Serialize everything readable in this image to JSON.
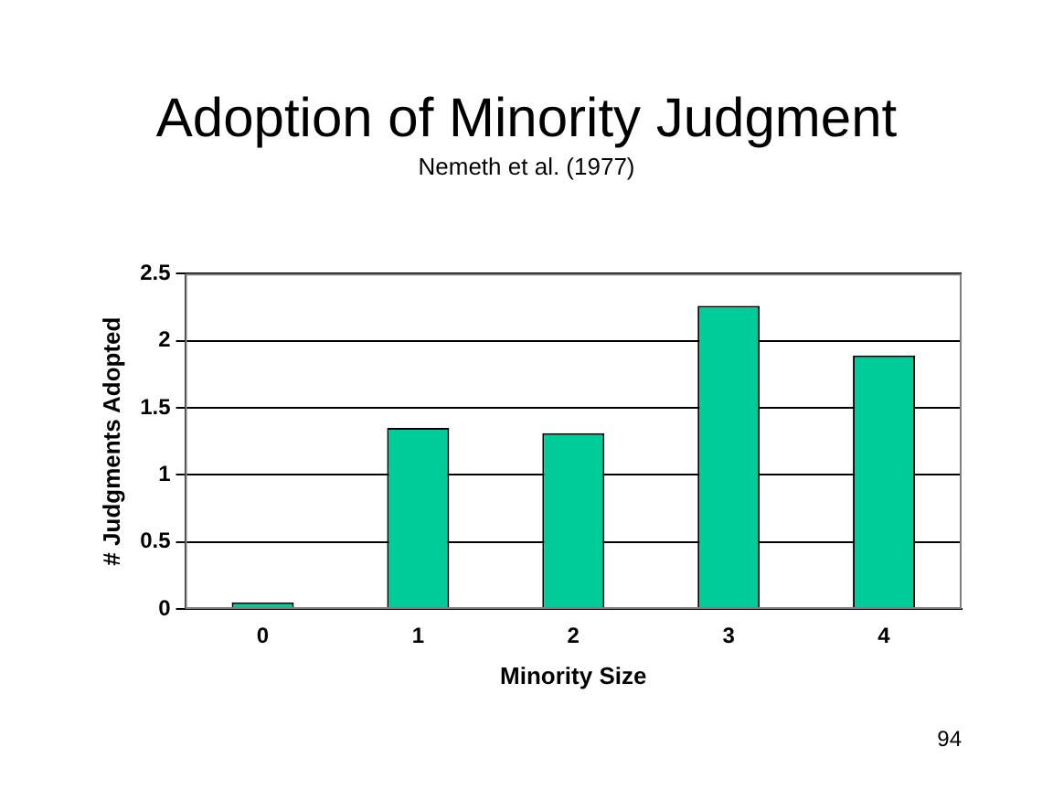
{
  "chart_data": {
    "type": "bar",
    "title": "Adoption of Minority Judgment",
    "subtitle": "Nemeth et al. (1977)",
    "xlabel": "Minority Size",
    "ylabel": "# Judgments Adopted",
    "categories": [
      "0",
      "1",
      "2",
      "3",
      "4"
    ],
    "values": [
      0.05,
      1.35,
      1.31,
      2.26,
      1.89
    ],
    "color": "#00cc99",
    "ylim": [
      0,
      2.5
    ],
    "yticks": [
      0,
      0.5,
      1,
      1.5,
      2,
      2.5
    ],
    "grid": "y",
    "legend": false,
    "annotations": [
      "94"
    ]
  }
}
